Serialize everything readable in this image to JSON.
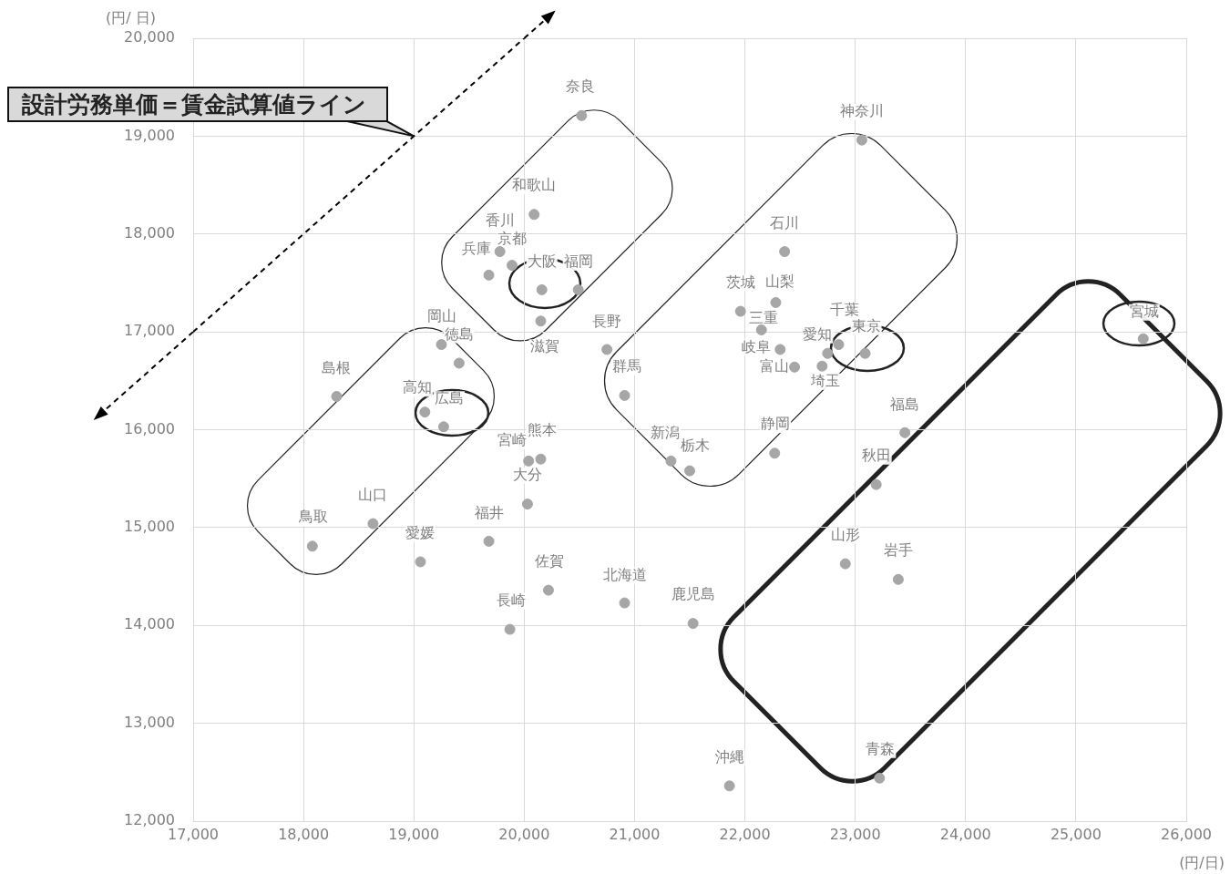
{
  "chart_data": {
    "type": "scatter",
    "xlabel": "(円/日)",
    "ylabel": "(円/ 日)",
    "xlim": [
      17000,
      26000
    ],
    "xticks": [
      {
        "value": 17000,
        "label": "17,000"
      },
      {
        "value": 18000,
        "label": "18,000"
      },
      {
        "value": 19000,
        "label": "19,000"
      },
      {
        "value": 20000,
        "label": "20,000"
      },
      {
        "value": 21000,
        "label": "21,000"
      },
      {
        "value": 22000,
        "label": "22,000"
      },
      {
        "value": 23000,
        "label": "23,000"
      },
      {
        "value": 24000,
        "label": "24,000"
      },
      {
        "value": 25000,
        "label": "25,000"
      },
      {
        "value": 26000,
        "label": "26,000"
      }
    ],
    "ylim": [
      12000,
      20000
    ],
    "yticks": [
      {
        "value": 12000,
        "label": "12,000"
      },
      {
        "value": 13000,
        "label": "13,000"
      },
      {
        "value": 14000,
        "label": "14,000"
      },
      {
        "value": 15000,
        "label": "15,000"
      },
      {
        "value": 16000,
        "label": "16,000"
      },
      {
        "value": 17000,
        "label": "17,000"
      },
      {
        "value": 18000,
        "label": "18,000"
      },
      {
        "value": 19000,
        "label": "19,000"
      },
      {
        "value": 20000,
        "label": "20,000"
      }
    ],
    "grid": true,
    "legend": false,
    "annotations": [
      {
        "text": "設計労務単価＝賃金試算値ライン",
        "x": 19000,
        "y": 19000
      }
    ],
    "series": [
      {
        "type": "scatter",
        "marker": "circle",
        "color": "#a6a6a6",
        "x": [
          20520,
          23060,
          20090,
          19780,
          19890,
          19680,
          20160,
          20490,
          20150,
          22360,
          21960,
          22280,
          22150,
          22320,
          22450,
          22750,
          22850,
          22700,
          23090,
          25610,
          20750,
          20910,
          19250,
          19410,
          18300,
          19100,
          19270,
          22270,
          23450,
          23190,
          21330,
          21500,
          20150,
          20040,
          20030,
          18630,
          18080,
          19680,
          19060,
          22910,
          23390,
          20220,
          20910,
          19870,
          21530,
          21860,
          23220
        ],
        "values": [
          19210,
          18960,
          18200,
          17820,
          17680,
          17580,
          17430,
          17430,
          17110,
          17820,
          17210,
          17300,
          17020,
          16820,
          16640,
          16780,
          16870,
          16650,
          16780,
          16930,
          16820,
          16350,
          16870,
          16680,
          16340,
          16180,
          16030,
          15760,
          15970,
          15440,
          15680,
          15580,
          15700,
          15680,
          15240,
          15040,
          14810,
          14860,
          14650,
          14630,
          14470,
          14360,
          14230,
          13960,
          14020,
          12360,
          12440
        ],
        "value_labels": [
          "奈良",
          "神奈川",
          "和歌山",
          "香川",
          "京都",
          "兵庫",
          "大阪",
          "福岡",
          "滋賀",
          "石川",
          "茨城",
          "山梨",
          "三重",
          "岐阜",
          "富山",
          "愛知",
          "千葉",
          "埼玉",
          "東京",
          "宮城",
          "長野",
          "群馬",
          "岡山",
          "徳島",
          "島根",
          "高知",
          "広島",
          "静岡",
          "福島",
          "秋田",
          "新潟",
          "栃木",
          "熊本",
          "宮崎",
          "大分",
          "山口",
          "鳥取",
          "福井",
          "愛媛",
          "山形",
          "岩手",
          "佐賀",
          "北海道",
          "長崎",
          "鹿児島",
          "沖縄",
          "青森"
        ]
      },
      {
        "type": "line",
        "color": "#000000",
        "line_style": "dashed",
        "x": [
          17000,
          20000
        ],
        "values": [
          17000,
          20000
        ]
      }
    ]
  }
}
